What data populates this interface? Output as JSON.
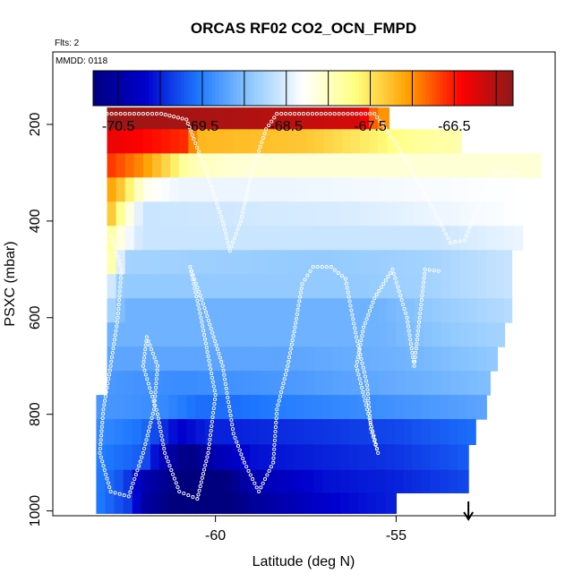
{
  "chart_data": {
    "type": "heatmap",
    "title": "ORCAS RF02 CO2_OCN_FMPD",
    "flights_label": "Flts: 2",
    "mmdd_label": "MMDD: 0118",
    "xlabel": "Latitude (deg N)",
    "ylabel": "PSXC (mbar)",
    "xlim": [
      -64.5,
      -50.6
    ],
    "ylim": [
      1010,
      50
    ],
    "y_reversed": true,
    "x_ticks": [
      -60,
      -55
    ],
    "x_tick_labels": [
      "-60",
      "-55"
    ],
    "y_ticks": [
      200,
      400,
      600,
      800,
      1000
    ],
    "y_tick_labels": [
      "200",
      "400",
      "600",
      "800",
      "1000"
    ],
    "colorbar": {
      "range": [
        -70.8,
        -65.8
      ],
      "tick_values": [
        -70.5,
        -69.5,
        -68.5,
        -67.5,
        -66.5
      ],
      "tick_labels": [
        "-70.5",
        "-69.5",
        "-68.5",
        "-67.5",
        "-66.5"
      ],
      "colors": [
        "#00007F",
        "#0000CD",
        "#1E78FF",
        "#8EC8FF",
        "#FFFFFF",
        "#FFFF80",
        "#FFA000",
        "#FF0000",
        "#8B1A1A"
      ]
    },
    "rows": [
      {
        "p": 185,
        "x0": -63.0,
        "x1": -55.2,
        "stops": [
          [
            -63.0,
            -65.9
          ],
          [
            -59.0,
            -66.0
          ],
          [
            -56.0,
            -66.2
          ],
          [
            -55.5,
            -67.0
          ]
        ]
      },
      {
        "p": 235,
        "x0": -63.0,
        "x1": -53.2,
        "stops": [
          [
            -63.0,
            -66.3
          ],
          [
            -61.5,
            -66.5
          ],
          [
            -60.8,
            -66.6
          ],
          [
            -60.5,
            -67.2
          ],
          [
            -57.5,
            -67.3
          ],
          [
            -55.5,
            -67.6
          ],
          [
            -54.5,
            -67.8
          ],
          [
            -53.2,
            -67.9
          ]
        ]
      },
      {
        "p": 285,
        "x0": -63.0,
        "x1": -51.0,
        "stops": [
          [
            -63.0,
            -66.6
          ],
          [
            -62.0,
            -67.0
          ],
          [
            -61.2,
            -67.5
          ],
          [
            -60.8,
            -67.9
          ],
          [
            -59.5,
            -68.1
          ],
          [
            -51.0,
            -68.1
          ]
        ]
      },
      {
        "p": 335,
        "x0": -63.0,
        "x1": -51.5,
        "stops": [
          [
            -63.0,
            -67.0
          ],
          [
            -62.5,
            -67.4
          ],
          [
            -62.0,
            -68.2
          ],
          [
            -61.0,
            -68.4
          ],
          [
            -58.0,
            -68.4
          ],
          [
            -51.5,
            -68.3
          ]
        ]
      },
      {
        "p": 385,
        "x0": -63.0,
        "x1": -51.5,
        "stops": [
          [
            -63.0,
            -67.1
          ],
          [
            -62.5,
            -68.0
          ],
          [
            -62.0,
            -68.6
          ],
          [
            -56.0,
            -68.5
          ],
          [
            -51.5,
            -68.3
          ]
        ]
      },
      {
        "p": 435,
        "x0": -63.0,
        "x1": -51.5,
        "stops": [
          [
            -63.0,
            -67.7
          ],
          [
            -62.5,
            -68.3
          ],
          [
            -62.0,
            -68.6
          ],
          [
            -54.0,
            -68.6
          ],
          [
            -51.5,
            -68.4
          ]
        ]
      },
      {
        "p": 485,
        "x0": -63.0,
        "x1": -51.8,
        "stops": [
          [
            -63.0,
            -67.6
          ],
          [
            -62.5,
            -68.8
          ],
          [
            -57.0,
            -68.9
          ],
          [
            -54.0,
            -68.8
          ],
          [
            -51.8,
            -68.6
          ]
        ]
      },
      {
        "p": 535,
        "x0": -63.0,
        "x1": -51.8,
        "stops": [
          [
            -63.0,
            -68.4
          ],
          [
            -62.6,
            -68.9
          ],
          [
            -56.0,
            -68.9
          ],
          [
            -54.0,
            -68.8
          ],
          [
            -51.8,
            -68.6
          ]
        ]
      },
      {
        "p": 585,
        "x0": -63.0,
        "x1": -51.8,
        "stops": [
          [
            -63.0,
            -68.7
          ],
          [
            -62.5,
            -69.1
          ],
          [
            -55.5,
            -69.1
          ],
          [
            -54.0,
            -68.9
          ],
          [
            -51.8,
            -68.7
          ]
        ]
      },
      {
        "p": 635,
        "x0": -63.0,
        "x1": -52.0,
        "stops": [
          [
            -63.0,
            -69.1
          ],
          [
            -55.5,
            -69.1
          ],
          [
            -53.5,
            -68.9
          ],
          [
            -52.0,
            -68.8
          ]
        ]
      },
      {
        "p": 685,
        "x0": -63.0,
        "x1": -52.2,
        "stops": [
          [
            -63.0,
            -69.2
          ],
          [
            -58.0,
            -69.2
          ],
          [
            -55.0,
            -69.1
          ],
          [
            -53.5,
            -69.0
          ],
          [
            -52.2,
            -68.9
          ]
        ]
      },
      {
        "p": 735,
        "x0": -63.0,
        "x1": -52.4,
        "stops": [
          [
            -63.0,
            -69.3
          ],
          [
            -61.0,
            -69.4
          ],
          [
            -58.0,
            -69.3
          ],
          [
            -54.0,
            -69.1
          ],
          [
            -52.4,
            -69.0
          ]
        ]
      },
      {
        "p": 785,
        "x0": -63.3,
        "x1": -52.5,
        "stops": [
          [
            -63.3,
            -69.3
          ],
          [
            -61.5,
            -69.4
          ],
          [
            -60.5,
            -69.6
          ],
          [
            -59.5,
            -69.6
          ],
          [
            -58.0,
            -69.5
          ],
          [
            -54.0,
            -69.3
          ],
          [
            -52.5,
            -69.2
          ]
        ]
      },
      {
        "p": 835,
        "x0": -63.3,
        "x1": -52.8,
        "stops": [
          [
            -63.3,
            -69.4
          ],
          [
            -62.0,
            -69.6
          ],
          [
            -61.0,
            -70.2
          ],
          [
            -60.2,
            -70.0
          ],
          [
            -59.5,
            -70.0
          ],
          [
            -57.0,
            -69.9
          ],
          [
            -55.0,
            -69.8
          ],
          [
            -52.8,
            -69.6
          ]
        ]
      },
      {
        "p": 890,
        "x0": -63.3,
        "x1": -53.0,
        "stops": [
          [
            -63.3,
            -69.5
          ],
          [
            -62.0,
            -69.7
          ],
          [
            -61.5,
            -70.3
          ],
          [
            -60.8,
            -70.8
          ],
          [
            -60.0,
            -70.4
          ],
          [
            -59.0,
            -70.1
          ],
          [
            -57.0,
            -70.0
          ],
          [
            -55.0,
            -69.9
          ],
          [
            -53.0,
            -69.7
          ]
        ]
      },
      {
        "p": 940,
        "x0": -63.3,
        "x1": -53.0,
        "stops": [
          [
            -63.3,
            -69.5
          ],
          [
            -62.5,
            -69.8
          ],
          [
            -62.0,
            -70.4
          ],
          [
            -61.0,
            -70.8
          ],
          [
            -60.0,
            -71.2
          ],
          [
            -59.7,
            -70.8
          ],
          [
            -59.0,
            -70.4
          ],
          [
            -57.0,
            -70.1
          ],
          [
            -55.0,
            -70.0
          ],
          [
            -53.0,
            -69.8
          ]
        ]
      },
      {
        "p": 985,
        "x0": -63.3,
        "x1": -55.0,
        "stops": [
          [
            -63.3,
            -69.5
          ],
          [
            -62.3,
            -69.9
          ],
          [
            -62.0,
            -70.5
          ],
          [
            -61.0,
            -70.9
          ],
          [
            -60.2,
            -71.2
          ],
          [
            -59.8,
            -70.9
          ],
          [
            -59.0,
            -70.6
          ],
          [
            -57.0,
            -70.2
          ],
          [
            -55.0,
            -70.0
          ]
        ]
      }
    ],
    "flight_tracks": [
      [
        [
          -63.0,
          178
        ],
        [
          -61.5,
          178
        ],
        [
          -60.8,
          190
        ],
        [
          -60.6,
          230
        ],
        [
          -60.2,
          310
        ],
        [
          -59.8,
          400
        ],
        [
          -59.6,
          462
        ],
        [
          -59.3,
          400
        ],
        [
          -59.0,
          300
        ],
        [
          -58.6,
          210
        ],
        [
          -58.3,
          178
        ],
        [
          -55.6,
          178
        ],
        [
          -55.0,
          240
        ],
        [
          -54.3,
          330
        ],
        [
          -53.8,
          400
        ],
        [
          -53.5,
          445
        ],
        [
          -53.1,
          440
        ],
        [
          -52.7,
          360
        ],
        [
          -52.3,
          300
        ],
        [
          -51.5,
          300
        ]
      ],
      [
        [
          -62.9,
          430
        ],
        [
          -62.6,
          500
        ],
        [
          -62.7,
          600
        ],
        [
          -62.9,
          700
        ],
        [
          -63.1,
          790
        ],
        [
          -63.2,
          880
        ],
        [
          -62.9,
          960
        ],
        [
          -62.4,
          970
        ],
        [
          -62.0,
          880
        ],
        [
          -61.7,
          790
        ],
        [
          -61.6,
          700
        ],
        [
          -61.9,
          640
        ],
        [
          -62.0,
          700
        ],
        [
          -61.6,
          800
        ],
        [
          -61.4,
          880
        ],
        [
          -61.0,
          960
        ],
        [
          -60.5,
          975
        ],
        [
          -60.2,
          880
        ],
        [
          -60.0,
          760
        ],
        [
          -60.4,
          600
        ],
        [
          -60.7,
          495
        ],
        [
          -60.3,
          580
        ],
        [
          -59.8,
          700
        ],
        [
          -59.5,
          840
        ],
        [
          -59.2,
          900
        ],
        [
          -58.8,
          960
        ],
        [
          -58.4,
          900
        ],
        [
          -58.3,
          790
        ],
        [
          -58.0,
          700
        ],
        [
          -57.8,
          620
        ],
        [
          -57.6,
          530
        ],
        [
          -57.3,
          495
        ],
        [
          -56.8,
          495
        ],
        [
          -56.4,
          520
        ],
        [
          -56.1,
          640
        ],
        [
          -55.8,
          740
        ],
        [
          -55.7,
          830
        ],
        [
          -55.5,
          880
        ],
        [
          -55.8,
          790
        ],
        [
          -56.1,
          700
        ],
        [
          -55.9,
          620
        ],
        [
          -55.6,
          560
        ],
        [
          -55.1,
          500
        ],
        [
          -54.7,
          600
        ],
        [
          -54.5,
          700
        ],
        [
          -54.2,
          500
        ],
        [
          -53.7,
          505
        ]
      ]
    ],
    "marker": {
      "lat": -53.0,
      "p": 1010
    }
  }
}
